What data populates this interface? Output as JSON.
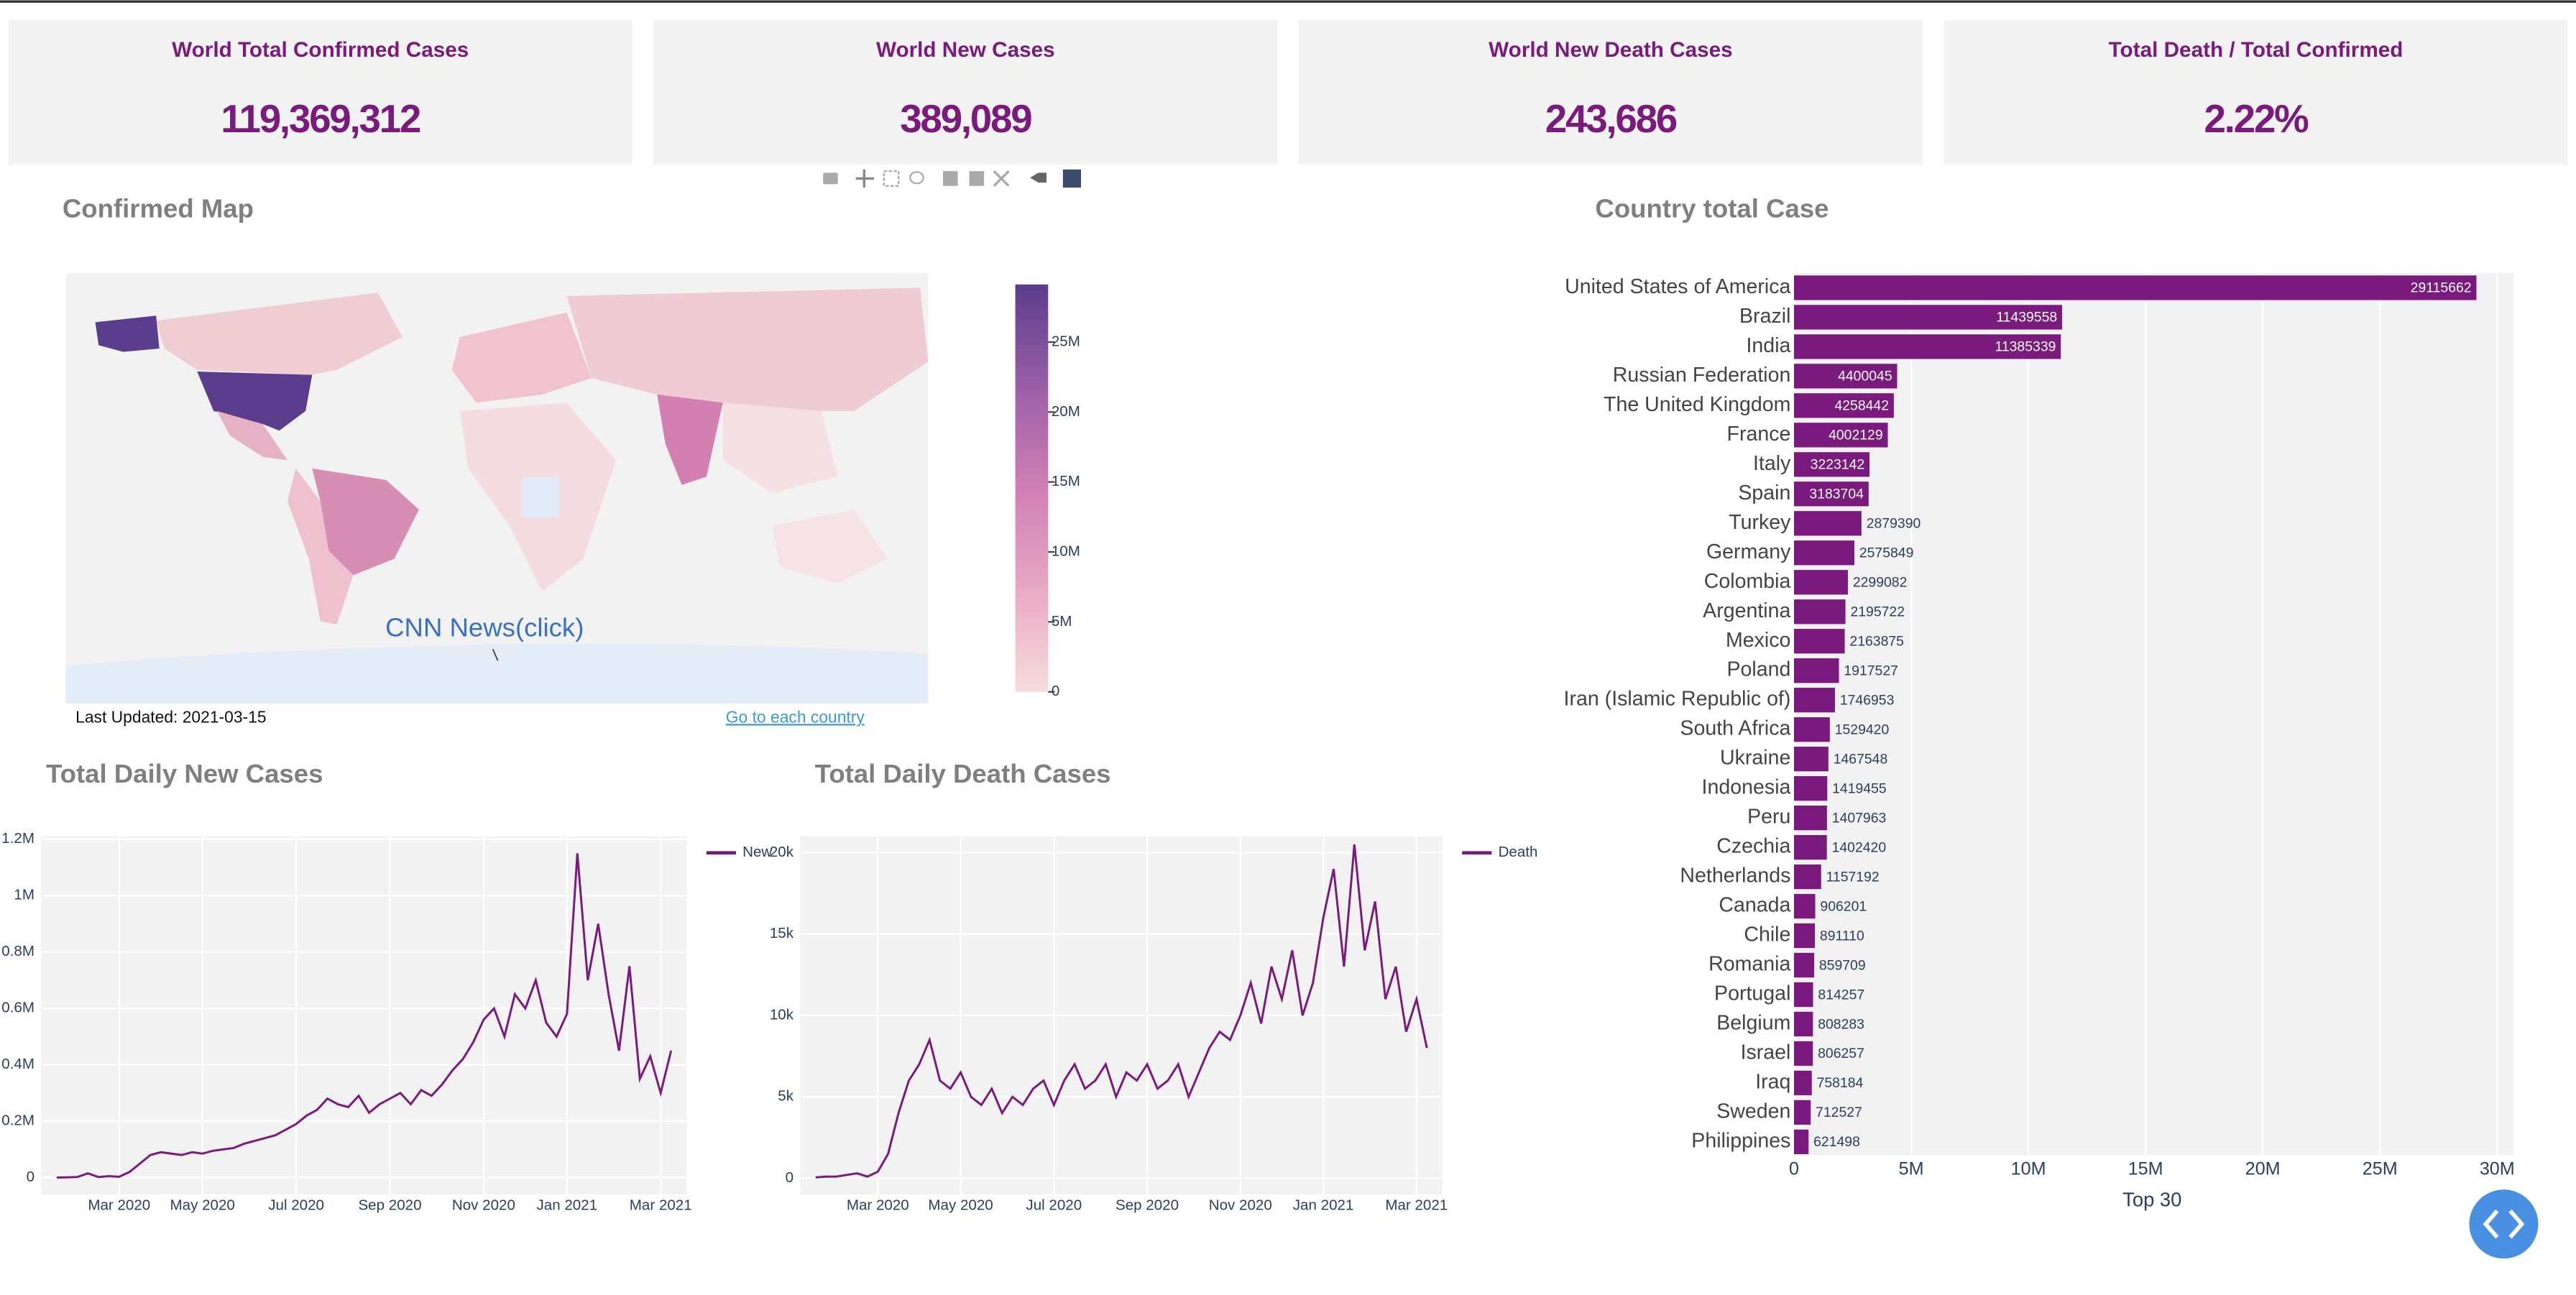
{
  "cards": [
    {
      "title": "World Total Confirmed Cases",
      "value": "119,369,312"
    },
    {
      "title": "World New Cases",
      "value": "389,089"
    },
    {
      "title": "World New Death Cases",
      "value": "243,686"
    },
    {
      "title": "Total Death / Total Confirmed",
      "value": "2.22%"
    }
  ],
  "map": {
    "title": "Confirmed Map",
    "annotation": "CNN News(click)",
    "last_updated": "Last Updated: 2021-03-15",
    "link": "Go to each country",
    "colorbar": {
      "range": [
        0,
        29115662
      ],
      "colors": [
        "#f7dcdc",
        "#e8a9c4",
        "#cf7fb4",
        "#9b5ea6",
        "#5a3d8c"
      ],
      "ticks": [
        0,
        {
          "value": 5000000,
          "label": "5M"
        },
        {
          "value": 10000000,
          "label": "10M"
        },
        {
          "value": 15000000,
          "label": "15M"
        },
        {
          "value": 20000000,
          "label": "20M"
        },
        {
          "value": 25000000,
          "label": "25M"
        }
      ]
    }
  },
  "chart_data": [
    {
      "type": "bar",
      "orientation": "horizontal",
      "title": "Country total Case",
      "xlabel": "Top 30",
      "color": "#7a1a7c",
      "grid": true,
      "categories": [
        "United States of America",
        "Brazil",
        "India",
        "Russian Federation",
        "The United Kingdom",
        "France",
        "Italy",
        "Spain",
        "Turkey",
        "Germany",
        "Colombia",
        "Argentina",
        "Mexico",
        "Poland",
        "Iran (Islamic Republic of)",
        "South Africa",
        "Ukraine",
        "Indonesia",
        "Peru",
        "Czechia",
        "Netherlands",
        "Canada",
        "Chile",
        "Romania",
        "Portugal",
        "Belgium",
        "Israel",
        "Iraq",
        "Sweden",
        "Philippines"
      ],
      "values": [
        29115662,
        11439558,
        11385339,
        4400045,
        4258442,
        4002129,
        3223142,
        3183704,
        2879390,
        2575849,
        2299082,
        2195722,
        2163875,
        1917527,
        1746953,
        1529420,
        1467548,
        1419455,
        1407963,
        1402420,
        1157192,
        906201,
        891110,
        859709,
        814257,
        808283,
        806257,
        758184,
        712527,
        621498
      ],
      "xlim": [
        0,
        30000000
      ],
      "xticks": [
        0,
        {
          "value": 5000000,
          "label": "5M"
        },
        {
          "value": 10000000,
          "label": "10M"
        },
        {
          "value": 15000000,
          "label": "15M"
        },
        {
          "value": 20000000,
          "label": "20M"
        },
        {
          "value": 25000000,
          "label": "25M"
        },
        {
          "value": 30000000,
          "label": "30M"
        }
      ]
    },
    {
      "type": "line",
      "title": "Total Daily New Cases",
      "grid": true,
      "categories": [
        null,
        null,
        null,
        null,
        null,
        null,
        "Mar 2020",
        null,
        null,
        null,
        null,
        null,
        null,
        null,
        "May 2020",
        null,
        null,
        null,
        null,
        null,
        null,
        null,
        null,
        "Jul 2020",
        null,
        null,
        null,
        null,
        null,
        null,
        null,
        null,
        "Sep 2020",
        null,
        null,
        null,
        null,
        null,
        null,
        null,
        null,
        "Nov 2020",
        null,
        null,
        null,
        null,
        null,
        null,
        null,
        "Jan 2021",
        null,
        null,
        null,
        null,
        null,
        null,
        null,
        null,
        "Mar 2021",
        null
      ],
      "series": [
        {
          "name": "New",
          "color": "#7a1a7c",
          "values": [
            0,
            1000,
            2000,
            15000,
            2000,
            5000,
            3000,
            20000,
            50000,
            80000,
            90000,
            85000,
            80000,
            90000,
            85000,
            95000,
            100000,
            105000,
            120000,
            130000,
            140000,
            150000,
            170000,
            190000,
            220000,
            240000,
            280000,
            260000,
            250000,
            290000,
            230000,
            260000,
            280000,
            300000,
            260000,
            310000,
            290000,
            330000,
            380000,
            420000,
            480000,
            560000,
            600000,
            500000,
            650000,
            600000,
            700000,
            550000,
            500000,
            580000,
            1150000,
            700000,
            900000,
            650000,
            450000,
            750000,
            350000,
            430000,
            300000,
            450000
          ]
        }
      ],
      "ylim": [
        -60000,
        1210000
      ],
      "yticks": [
        0,
        {
          "value": 200000,
          "label": "0.2M"
        },
        {
          "value": 400000,
          "label": "0.4M"
        },
        {
          "value": 600000,
          "label": "0.6M"
        },
        {
          "value": 800000,
          "label": "0.8M"
        },
        {
          "value": 1000000,
          "label": "1M"
        },
        {
          "value": 1200000,
          "label": "1.2M"
        }
      ]
    },
    {
      "type": "line",
      "title": "Total Daily Death Cases",
      "grid": true,
      "categories": [
        null,
        null,
        null,
        null,
        null,
        null,
        "Mar 2020",
        null,
        null,
        null,
        null,
        null,
        null,
        null,
        "May 2020",
        null,
        null,
        null,
        null,
        null,
        null,
        null,
        null,
        "Jul 2020",
        null,
        null,
        null,
        null,
        null,
        null,
        null,
        null,
        "Sep 2020",
        null,
        null,
        null,
        null,
        null,
        null,
        null,
        null,
        "Nov 2020",
        null,
        null,
        null,
        null,
        null,
        null,
        null,
        "Jan 2021",
        null,
        null,
        null,
        null,
        null,
        null,
        null,
        null,
        "Mar 2021",
        null
      ],
      "series": [
        {
          "name": "Death",
          "color": "#7a1a7c",
          "values": [
            50,
            100,
            100,
            200,
            300,
            100,
            400,
            1500,
            4000,
            6000,
            7000,
            8500,
            6000,
            5500,
            6500,
            5000,
            4500,
            5500,
            4000,
            5000,
            4500,
            5500,
            6000,
            4500,
            6000,
            7000,
            5500,
            6000,
            7000,
            5000,
            6500,
            6000,
            7000,
            5500,
            6000,
            7000,
            5000,
            6500,
            8000,
            9000,
            8500,
            10000,
            12000,
            9500,
            13000,
            11000,
            14000,
            10000,
            12000,
            16000,
            19000,
            13000,
            20500,
            14000,
            17000,
            11000,
            13000,
            9000,
            11000,
            8000
          ]
        }
      ],
      "ylim": [
        -1000,
        21000
      ],
      "yticks": [
        0,
        {
          "value": 5000,
          "label": "5k"
        },
        {
          "value": 10000,
          "label": "10k"
        },
        {
          "value": 15000,
          "label": "15k"
        },
        {
          "value": 20000,
          "label": "20k"
        }
      ]
    }
  ]
}
